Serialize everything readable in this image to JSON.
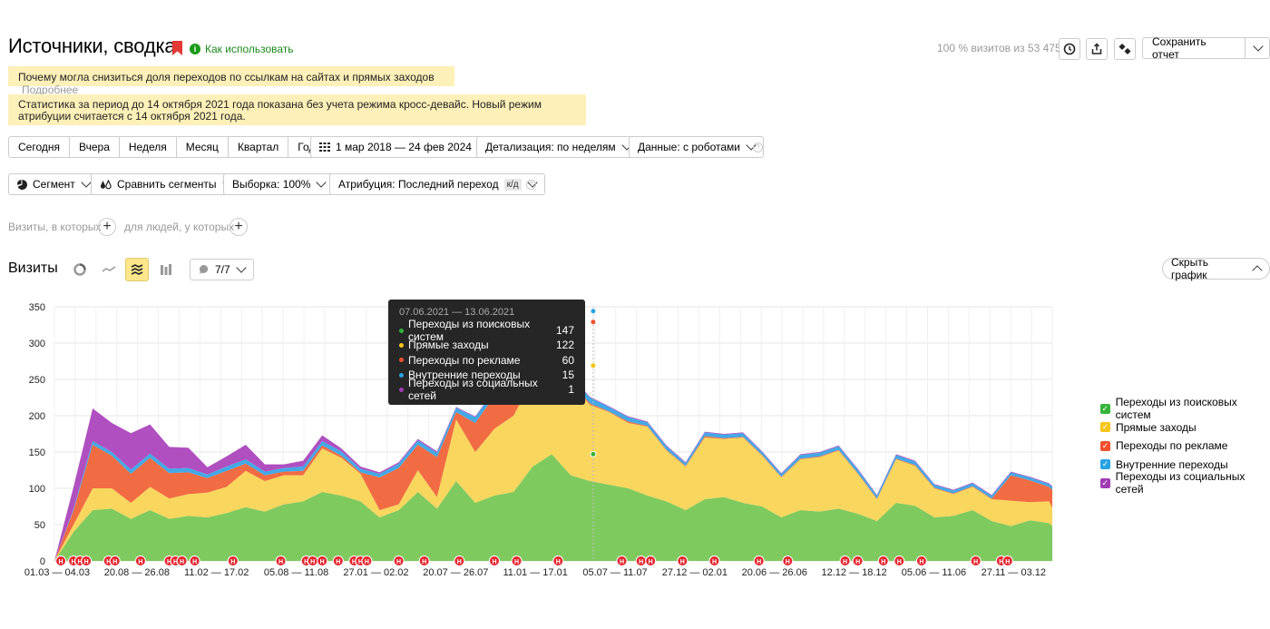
{
  "header": {
    "title": "Источники, сводка",
    "how_to": "Как использовать",
    "visits_info": "100 % визитов из 53 475",
    "save_label": "Сохранить отчет"
  },
  "notices": {
    "n1_text": "Почему могла снизиться доля переходов по ссылкам на сайтах и прямых заходов",
    "n1_more": "Подробнее",
    "n2_text": "Статистика за период до 14 октября 2021 года показана без учета режима кросс-девайс. Новый режим атрибуции считается с 14 октября 2021 года."
  },
  "periods": [
    "Сегодня",
    "Вчера",
    "Неделя",
    "Месяц",
    "Квартал",
    "Год"
  ],
  "toolbar": {
    "date_range": "1 мар 2018 — 24 фев 2024",
    "detail": "Детализация: по неделям",
    "data": "Данные: с роботами",
    "segment": "Сегмент",
    "compare": "Сравнить сегменты",
    "sample": "Выборка: 100%",
    "attribution": "Атрибуция: Последний переход",
    "attribution_badge": "к/д"
  },
  "conditions": {
    "visits_where": "Визиты, в которых",
    "people_where": "для людей, у которых"
  },
  "chart_header": {
    "title": "Визиты",
    "series_count": "7/7",
    "hide_label": "Скрыть график"
  },
  "tooltip": {
    "period": "07.06.2021 — 13.06.2021",
    "rows": [
      {
        "label": "Переходы из поисковых систем",
        "value": "147",
        "color": "#35b43a"
      },
      {
        "label": "Прямые заходы",
        "value": "122",
        "color": "#f5c518"
      },
      {
        "label": "Переходы по рекламе",
        "value": "60",
        "color": "#f0502d"
      },
      {
        "label": "Внутренние переходы",
        "value": "15",
        "color": "#29a3e4"
      },
      {
        "label": "Переходы из социальных сетей",
        "value": "1",
        "color": "#a23cb4"
      }
    ]
  },
  "annotation_marker": "Н",
  "chart_data": {
    "type": "area",
    "stacked": true,
    "ylabel": "",
    "ylim": [
      0,
      350
    ],
    "yticks": [
      0,
      50,
      100,
      150,
      200,
      250,
      300,
      350
    ],
    "xtick_labels": [
      "01.03 — 04.03",
      "20.08 — 26.08",
      "11.02 — 17.02",
      "05.08 — 11.08",
      "27.01 — 02.02",
      "20.07 — 26.07",
      "11.01 — 17.01",
      "05.07 — 11.07",
      "27.12 — 02.01",
      "20.06 — 26.06",
      "12.12 — 18.12",
      "05.06 — 11.06",
      "27.11 — 03.12"
    ],
    "x_weeks": [
      0,
      6,
      12,
      18,
      24,
      30,
      36,
      42,
      48,
      54,
      60,
      66,
      72,
      78,
      84,
      90,
      96,
      102,
      108,
      114,
      120,
      126,
      132,
      138,
      144,
      150,
      156,
      162,
      168,
      174,
      180,
      186,
      192,
      198,
      204,
      210,
      216,
      222,
      228,
      234,
      240,
      246,
      252,
      258,
      264,
      270,
      276,
      282,
      288,
      294,
      300,
      306,
      312,
      313
    ],
    "series": [
      {
        "name": "Переходы из поисковых систем",
        "color": "#7fca5f",
        "values": [
          0,
          40,
          70,
          72,
          58,
          70,
          58,
          62,
          60,
          66,
          74,
          68,
          78,
          82,
          95,
          90,
          82,
          60,
          70,
          95,
          72,
          110,
          80,
          90,
          95,
          130,
          147,
          118,
          110,
          105,
          100,
          90,
          82,
          70,
          85,
          88,
          80,
          75,
          60,
          70,
          68,
          72,
          65,
          55,
          80,
          76,
          60,
          62,
          70,
          55,
          48,
          56,
          52,
          48
        ]
      },
      {
        "name": "Прямые заходы",
        "color": "#f9d65e",
        "values": [
          0,
          10,
          30,
          28,
          22,
          32,
          28,
          30,
          34,
          36,
          50,
          42,
          40,
          36,
          60,
          52,
          38,
          10,
          8,
          30,
          16,
          85,
          70,
          92,
          105,
          120,
          122,
          125,
          105,
          100,
          90,
          95,
          70,
          60,
          85,
          80,
          90,
          70,
          55,
          70,
          75,
          80,
          55,
          30,
          60,
          55,
          40,
          30,
          32,
          30,
          35,
          25,
          30,
          25
        ]
      },
      {
        "name": "Переходы по рекламе",
        "color": "#f16b43",
        "values": [
          0,
          20,
          60,
          45,
          40,
          40,
          35,
          30,
          20,
          22,
          10,
          8,
          5,
          6,
          4,
          3,
          2,
          45,
          50,
          35,
          55,
          10,
          40,
          45,
          28,
          18,
          60,
          3,
          2,
          1,
          2,
          1,
          1,
          1,
          2,
          1,
          1,
          1,
          1,
          1,
          1,
          1,
          1,
          1,
          1,
          1,
          1,
          1,
          1,
          1,
          35,
          30,
          20,
          25
        ]
      },
      {
        "name": "Внутренние переходы",
        "color": "#43a9e6",
        "values": [
          0,
          2,
          5,
          5,
          6,
          6,
          6,
          6,
          5,
          6,
          6,
          5,
          5,
          6,
          6,
          6,
          5,
          5,
          6,
          6,
          6,
          6,
          8,
          8,
          10,
          12,
          15,
          8,
          8,
          6,
          6,
          5,
          5,
          4,
          5,
          5,
          5,
          4,
          4,
          5,
          5,
          5,
          5,
          4,
          5,
          5,
          4,
          4,
          4,
          4,
          4,
          4,
          4,
          4
        ]
      },
      {
        "name": "Переходы из социальных сетей",
        "color": "#b04fc0",
        "values": [
          0,
          30,
          45,
          40,
          50,
          40,
          30,
          28,
          10,
          14,
          20,
          10,
          5,
          8,
          8,
          4,
          3,
          2,
          2,
          2,
          2,
          1,
          1,
          1,
          1,
          1,
          1,
          1,
          1,
          1,
          1,
          1,
          1,
          1,
          1,
          1,
          1,
          1,
          1,
          1,
          1,
          1,
          1,
          1,
          1,
          1,
          1,
          1,
          1,
          1,
          1,
          1,
          1,
          1
        ]
      }
    ],
    "legend": {
      "placement": "right"
    },
    "grid": true,
    "highlight": {
      "week": 169,
      "values": [
        147,
        122,
        60,
        15,
        1
      ]
    }
  }
}
